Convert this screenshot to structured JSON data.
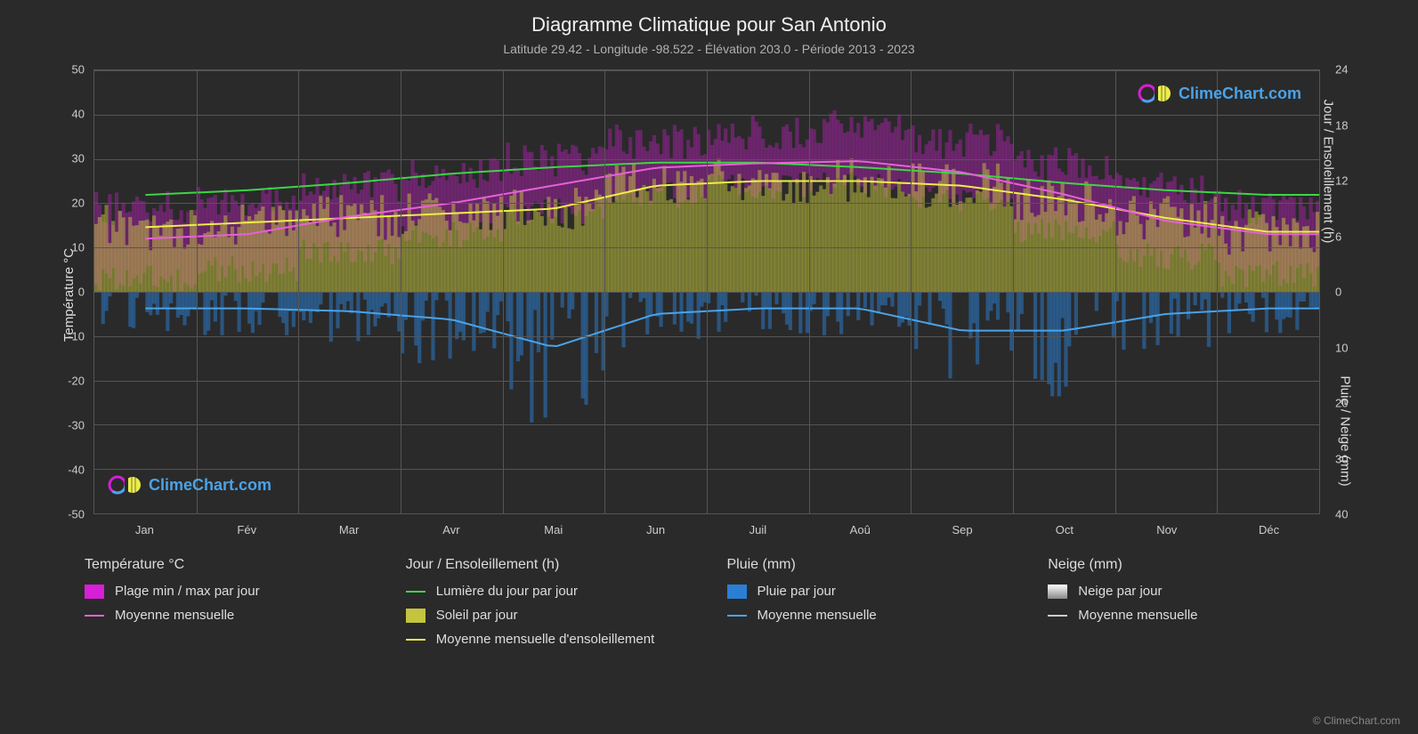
{
  "title": "Diagramme Climatique pour San Antonio",
  "subtitle": "Latitude 29.42 - Longitude -98.522 - Élévation 203.0 - Période 2013 - 2023",
  "axis_left_label": "Température °C",
  "axis_right_top_label": "Jour / Ensoleillement (h)",
  "axis_right_bottom_label": "Pluie / Neige (mm)",
  "left_axis": {
    "min": -50,
    "max": 50,
    "step": 10
  },
  "right_axis_top": {
    "min": 0,
    "max": 24,
    "step": 6
  },
  "right_axis_bottom": {
    "min": 0,
    "max": 40,
    "step": 10
  },
  "months": [
    "Jan",
    "Fév",
    "Mar",
    "Avr",
    "Mai",
    "Jun",
    "Juil",
    "Aoû",
    "Sep",
    "Oct",
    "Nov",
    "Déc"
  ],
  "colors": {
    "background": "#2a2a2a",
    "grid": "#555555",
    "text": "#dddddd",
    "temp_range": "#d61fd6",
    "temp_avg": "#e860d8",
    "daylight": "#3fd445",
    "sunshine_fill": "#c4c43e",
    "sunshine_avg": "#eded4a",
    "rain_bars": "#2a7fd4",
    "rain_avg": "#4aa3e8",
    "snow": "#cccccc"
  },
  "series": {
    "daylight_hours": [
      10.5,
      11,
      11.8,
      12.8,
      13.5,
      14,
      14,
      13.5,
      12.8,
      11.8,
      11,
      10.5
    ],
    "sunshine_avg_hours": [
      7,
      7.5,
      8,
      8.5,
      9,
      11.5,
      12,
      12,
      11.5,
      10,
      8,
      6.5
    ],
    "temp_avg_c": [
      12,
      13,
      17,
      20,
      24,
      28,
      29,
      29.5,
      27,
      22,
      16,
      13
    ],
    "temp_min_c": [
      3,
      5,
      9,
      13,
      18,
      22,
      24,
      24,
      21,
      14,
      8,
      4
    ],
    "temp_max_c": [
      19,
      21,
      24,
      27,
      30,
      34,
      36,
      37,
      34,
      29,
      23,
      19
    ],
    "rain_avg_mm": [
      3,
      3,
      3.5,
      5,
      10,
      4,
      3,
      3,
      7,
      7,
      4,
      3
    ]
  },
  "legend": {
    "temp_title": "Température °C",
    "temp_range": "Plage min / max par jour",
    "temp_avg": "Moyenne mensuelle",
    "day_title": "Jour / Ensoleillement (h)",
    "daylight": "Lumière du jour par jour",
    "sunshine": "Soleil par jour",
    "sunshine_avg": "Moyenne mensuelle d'ensoleillement",
    "rain_title": "Pluie (mm)",
    "rain_daily": "Pluie par jour",
    "rain_avg": "Moyenne mensuelle",
    "snow_title": "Neige (mm)",
    "snow_daily": "Neige par jour",
    "snow_avg": "Moyenne mensuelle"
  },
  "watermark_text": "ClimeChart.com",
  "watermark_color": "#4aa3e8",
  "copyright": "© ClimeChart.com"
}
